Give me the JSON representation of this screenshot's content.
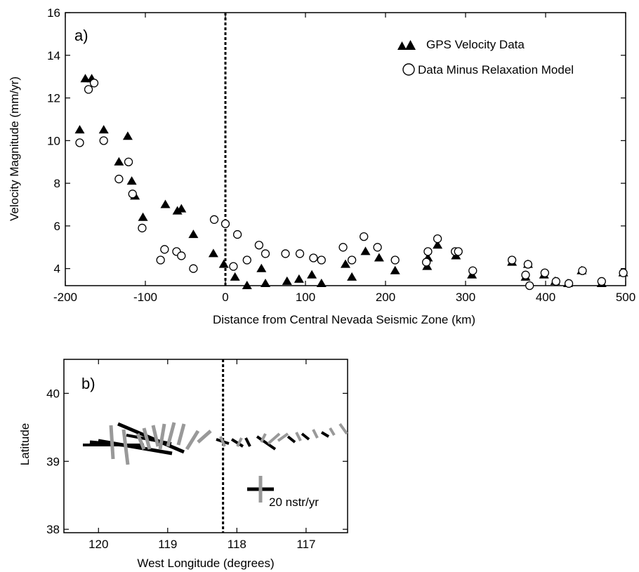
{
  "chart_data": [
    {
      "type": "scatter",
      "panel_label": "a)",
      "xlabel": "Distance from Central Nevada Seismic Zone (km)",
      "ylabel": "Velocity Magnitude (mm/yr)",
      "xlim": [
        -200,
        500
      ],
      "ylim": [
        3.2,
        16
      ],
      "xticks": [
        "-200",
        "-100",
        "0",
        "100",
        "200",
        "300",
        "400",
        "500"
      ],
      "yticks": [
        "4",
        "6",
        "8",
        "10",
        "12",
        "14",
        "16"
      ],
      "legend_position": "top-right",
      "reference_line_x": 0,
      "series": [
        {
          "name": "GPS Velocity Data",
          "marker": "filled-triangle",
          "points": [
            [
              -182,
              10.5
            ],
            [
              -175,
              12.9
            ],
            [
              -167,
              12.9
            ],
            [
              -152,
              10.5
            ],
            [
              -122,
              10.2
            ],
            [
              -133,
              9.0
            ],
            [
              -117,
              8.1
            ],
            [
              -113,
              7.4
            ],
            [
              -103,
              6.4
            ],
            [
              -75,
              7.0
            ],
            [
              -60,
              6.7
            ],
            [
              -55,
              6.8
            ],
            [
              -40,
              5.6
            ],
            [
              -15,
              4.7
            ],
            [
              -2,
              4.2
            ],
            [
              12,
              3.6
            ],
            [
              27,
              3.2
            ],
            [
              45,
              4.0
            ],
            [
              50,
              3.3
            ],
            [
              77,
              3.4
            ],
            [
              92,
              3.5
            ],
            [
              108,
              3.7
            ],
            [
              120,
              3.3
            ],
            [
              150,
              4.2
            ],
            [
              158,
              3.6
            ],
            [
              175,
              4.8
            ],
            [
              192,
              4.5
            ],
            [
              212,
              3.9
            ],
            [
              252,
              4.1
            ],
            [
              253,
              4.5
            ],
            [
              265,
              5.1
            ],
            [
              288,
              4.6
            ],
            [
              308,
              3.7
            ],
            [
              358,
              4.3
            ],
            [
              375,
              3.6
            ],
            [
              378,
              4.2
            ],
            [
              398,
              3.7
            ],
            [
              412,
              3.4
            ],
            [
              428,
              3.3
            ],
            [
              445,
              3.9
            ],
            [
              470,
              3.3
            ],
            [
              497,
              3.8
            ]
          ]
        },
        {
          "name": "Data Minus Relaxation Model",
          "marker": "open-circle",
          "points": [
            [
              -182,
              9.9
            ],
            [
              -171,
              12.4
            ],
            [
              -164,
              12.7
            ],
            [
              -152,
              10.0
            ],
            [
              -121,
              9.0
            ],
            [
              -133,
              8.2
            ],
            [
              -116,
              7.5
            ],
            [
              -104,
              5.9
            ],
            [
              -81,
              4.4
            ],
            [
              -76,
              4.9
            ],
            [
              -61,
              4.8
            ],
            [
              -55,
              4.6
            ],
            [
              -40,
              4.0
            ],
            [
              -14,
              6.3
            ],
            [
              0,
              6.1
            ],
            [
              10,
              4.1
            ],
            [
              15,
              5.6
            ],
            [
              27,
              4.4
            ],
            [
              42,
              5.1
            ],
            [
              50,
              4.7
            ],
            [
              75,
              4.7
            ],
            [
              93,
              4.7
            ],
            [
              110,
              4.5
            ],
            [
              120,
              4.4
            ],
            [
              147,
              5.0
            ],
            [
              158,
              4.4
            ],
            [
              173,
              5.5
            ],
            [
              190,
              5.0
            ],
            [
              212,
              4.4
            ],
            [
              251,
              4.3
            ],
            [
              253,
              4.8
            ],
            [
              265,
              5.4
            ],
            [
              287,
              4.8
            ],
            [
              291,
              4.8
            ],
            [
              309,
              3.9
            ],
            [
              358,
              4.4
            ],
            [
              375,
              3.7
            ],
            [
              378,
              4.2
            ],
            [
              380,
              3.2
            ],
            [
              399,
              3.8
            ],
            [
              413,
              3.4
            ],
            [
              429,
              3.3
            ],
            [
              446,
              3.9
            ],
            [
              470,
              3.4
            ],
            [
              497,
              3.8
            ]
          ]
        }
      ]
    },
    {
      "type": "scatter",
      "panel_label": "b)",
      "xlabel": "West Longitude (degrees)",
      "ylabel": "Latitude",
      "xlim": [
        120.5,
        116.4
      ],
      "ylim": [
        37.95,
        40.5
      ],
      "xticks": [
        "120",
        "119",
        "118",
        "117"
      ],
      "yticks": [
        "38",
        "39",
        "40"
      ],
      "reference_line_x": 118.2,
      "scale_label": "20 nstr/yr",
      "scale_value_nstr_per_yr": 20
    }
  ]
}
